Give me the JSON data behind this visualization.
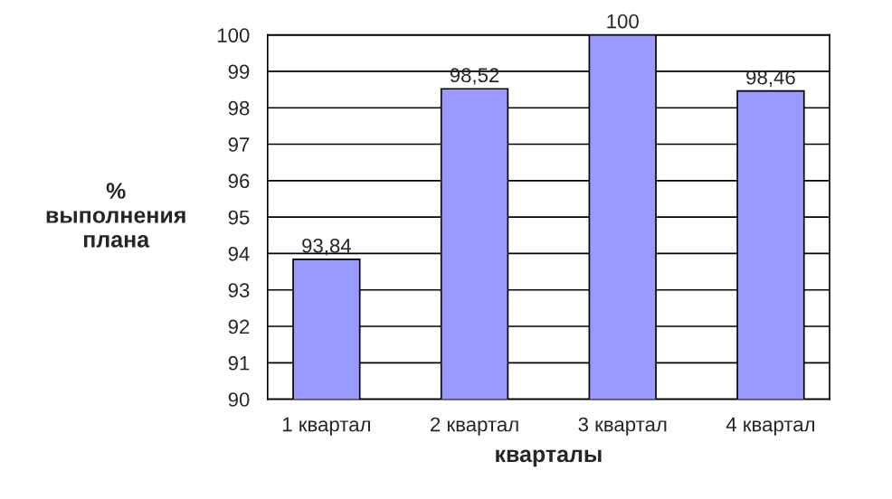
{
  "chart_data": {
    "type": "bar",
    "categories": [
      "1 квартал",
      "2 квартал",
      "3 квартал",
      "4 квартал"
    ],
    "values": [
      93.84,
      98.52,
      100,
      98.46
    ],
    "value_labels": [
      "93,84",
      "98,52",
      "100",
      "98,46"
    ],
    "color": "#9999ff",
    "xlabel": "кварталы",
    "ylabel": "%\nвыполнения\nплана",
    "ylim": [
      90,
      100
    ],
    "yticks": [
      90,
      91,
      92,
      93,
      94,
      95,
      96,
      97,
      98,
      99,
      100
    ],
    "grid": "y"
  }
}
